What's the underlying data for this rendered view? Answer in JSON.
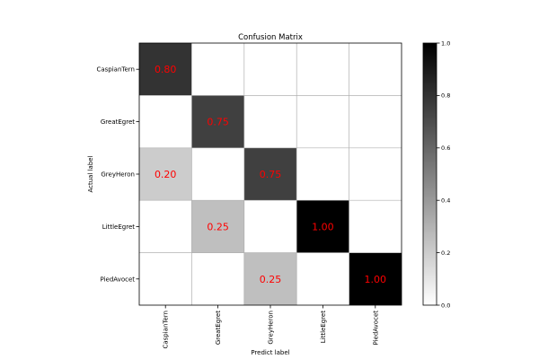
{
  "chart_data": {
    "type": "heatmap",
    "title": "Confusion Matrix",
    "xlabel": "Predict label",
    "ylabel": "Actual label",
    "x_categories": [
      "CaspianTern",
      "GreatEgret",
      "GreyHeron",
      "LittleEgret",
      "PiedAvocet"
    ],
    "y_categories": [
      "CaspianTern",
      "GreatEgret",
      "GreyHeron",
      "LittleEgret",
      "PiedAvocet"
    ],
    "matrix": [
      [
        0.8,
        0.0,
        0.0,
        0.0,
        0.0
      ],
      [
        0.0,
        0.75,
        0.0,
        0.0,
        0.0
      ],
      [
        0.2,
        0.0,
        0.75,
        0.0,
        0.0
      ],
      [
        0.0,
        0.25,
        0.0,
        1.0,
        0.0
      ],
      [
        0.0,
        0.0,
        0.25,
        0.0,
        1.0
      ]
    ],
    "cell_labels": [
      [
        "0.80",
        "",
        "",
        "",
        ""
      ],
      [
        "",
        "0.75",
        "",
        "",
        ""
      ],
      [
        "0.20",
        "",
        "0.75",
        "",
        ""
      ],
      [
        "",
        "0.25",
        "",
        "1.00",
        ""
      ],
      [
        "",
        "",
        "0.25",
        "",
        "1.00"
      ]
    ],
    "value_range": [
      0.0,
      1.0
    ],
    "colormap": "Greys",
    "label_color": "#ff0000",
    "grid": true,
    "colorbar": {
      "position": "right",
      "ticks": [
        "0.0",
        "0.2",
        "0.4",
        "0.6",
        "0.8",
        "1.0"
      ],
      "tick_values": [
        0.0,
        0.2,
        0.4,
        0.6,
        0.8,
        1.0
      ]
    }
  }
}
